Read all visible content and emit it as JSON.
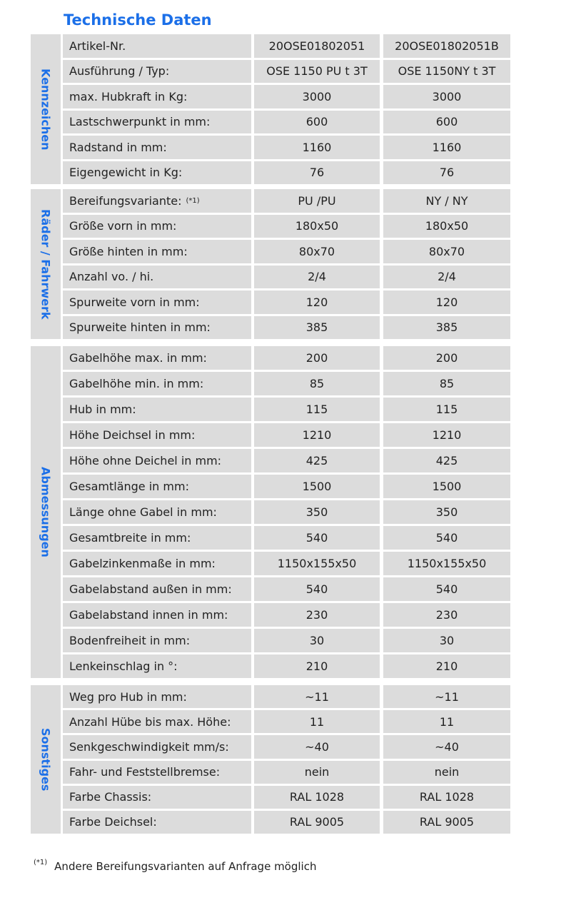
{
  "title": "Technische Daten",
  "groups": [
    {
      "name": "Kennzeichen",
      "rows": [
        [
          "Artikel-Nr.",
          "20OSE01802051",
          "20OSE01802051B"
        ],
        [
          "Ausführung / Typ:",
          "OSE 1150 PU t 3T",
          "OSE 1150NY t 3T"
        ],
        [
          "max. Hubkraft in Kg:",
          "3000",
          "3000"
        ],
        [
          "Lastschwerpunkt in mm:",
          "600",
          "600"
        ],
        [
          "Radstand in mm:",
          "1160",
          "1160"
        ],
        [
          "Eigengewicht in Kg:",
          "76",
          "76"
        ]
      ]
    },
    {
      "name": "Räder / Fahrwerk",
      "rows": [
        [
          "Bereifungsvariante:",
          "PU /PU",
          "NY / NY"
        ],
        [
          "Größe vorn in mm:",
          "180x50",
          "180x50"
        ],
        [
          "Größe hinten in mm:",
          "80x70",
          "80x70"
        ],
        [
          "Anzahl vo. / hi.",
          "2/4",
          "2/4"
        ],
        [
          "Spurweite vorn in mm:",
          "120",
          "120"
        ],
        [
          "Spurweite hinten in mm:",
          "385",
          "385"
        ]
      ]
    },
    {
      "name": "Abmessungen",
      "rows": [
        [
          "Gabelhöhe max. in mm:",
          "200",
          "200"
        ],
        [
          "Gabelhöhe min. in mm:",
          "85",
          "85"
        ],
        [
          "Hub in mm:",
          "115",
          "115"
        ],
        [
          "Höhe Deichsel in mm:",
          "1210",
          "1210"
        ],
        [
          "Höhe ohne Deichel in mm:",
          "425",
          "425"
        ],
        [
          "Gesamtlänge in mm:",
          "1500",
          "1500"
        ],
        [
          "Länge ohne Gabel in mm:",
          "350",
          "350"
        ],
        [
          "Gesamtbreite in mm:",
          "540",
          "540"
        ],
        [
          "Gabelzinkenmaße in mm:",
          "1150x155x50",
          "1150x155x50"
        ],
        [
          "Gabelabstand außen in mm:",
          "540",
          "540"
        ],
        [
          "Gabelabstand innen in mm:",
          "230",
          "230"
        ],
        [
          "Bodenfreiheit in mm:",
          "30",
          "30"
        ],
        [
          "Lenkeinschlag in °:",
          "210",
          "210"
        ]
      ]
    },
    {
      "name": "Sonstiges",
      "rows": [
        [
          "Weg pro Hub in mm:",
          "~11",
          "~11"
        ],
        [
          "Anzahl Hübe bis max. Höhe:",
          "11",
          "11"
        ],
        [
          "Senkgeschwindigkeit mm/s:",
          "~40",
          "~40"
        ],
        [
          "Fahr- und Feststellbremse:",
          "nein",
          "nein"
        ],
        [
          "Farbe Chassis:",
          "RAL 1028",
          "RAL 1028"
        ],
        [
          "Farbe Deichsel:",
          "RAL 9005",
          "RAL 9005"
        ]
      ]
    }
  ],
  "footnote_mark": "(*1)",
  "footnote": "Andere Bereifungsvarianten auf Anfrage möglich",
  "colors": {
    "accent": "#1b6fe8",
    "cell": "#dcdcdc"
  }
}
